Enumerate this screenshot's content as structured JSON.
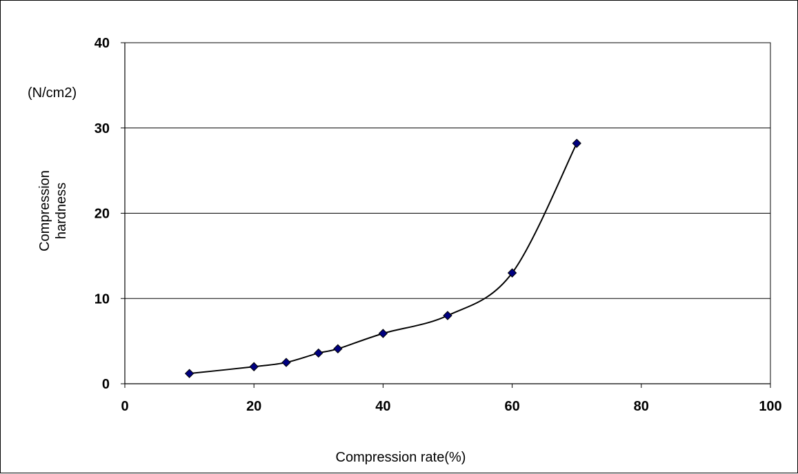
{
  "chart_data": {
    "type": "scatter",
    "title": "",
    "xlabel": "Compression rate(%)",
    "ylabel": [
      "Compression",
      "hardness"
    ],
    "y_unit": "(N/cm2)",
    "xlim": [
      0,
      100
    ],
    "ylim": [
      0,
      40
    ],
    "x_ticks": [
      0,
      20,
      40,
      60,
      80,
      100
    ],
    "y_ticks": [
      0,
      10,
      20,
      30,
      40
    ],
    "grid": "horizontal",
    "legend": "none",
    "series": [
      {
        "marker": "diamond",
        "line": "smooth",
        "color": "#000080",
        "points": [
          {
            "x": 10,
            "y": 1.2
          },
          {
            "x": 20,
            "y": 2.0
          },
          {
            "x": 25,
            "y": 2.5
          },
          {
            "x": 30,
            "y": 3.6
          },
          {
            "x": 33,
            "y": 4.1
          },
          {
            "x": 40,
            "y": 5.9
          },
          {
            "x": 50,
            "y": 8.0
          },
          {
            "x": 60,
            "y": 13.0
          },
          {
            "x": 70,
            "y": 28.2
          }
        ]
      }
    ]
  }
}
